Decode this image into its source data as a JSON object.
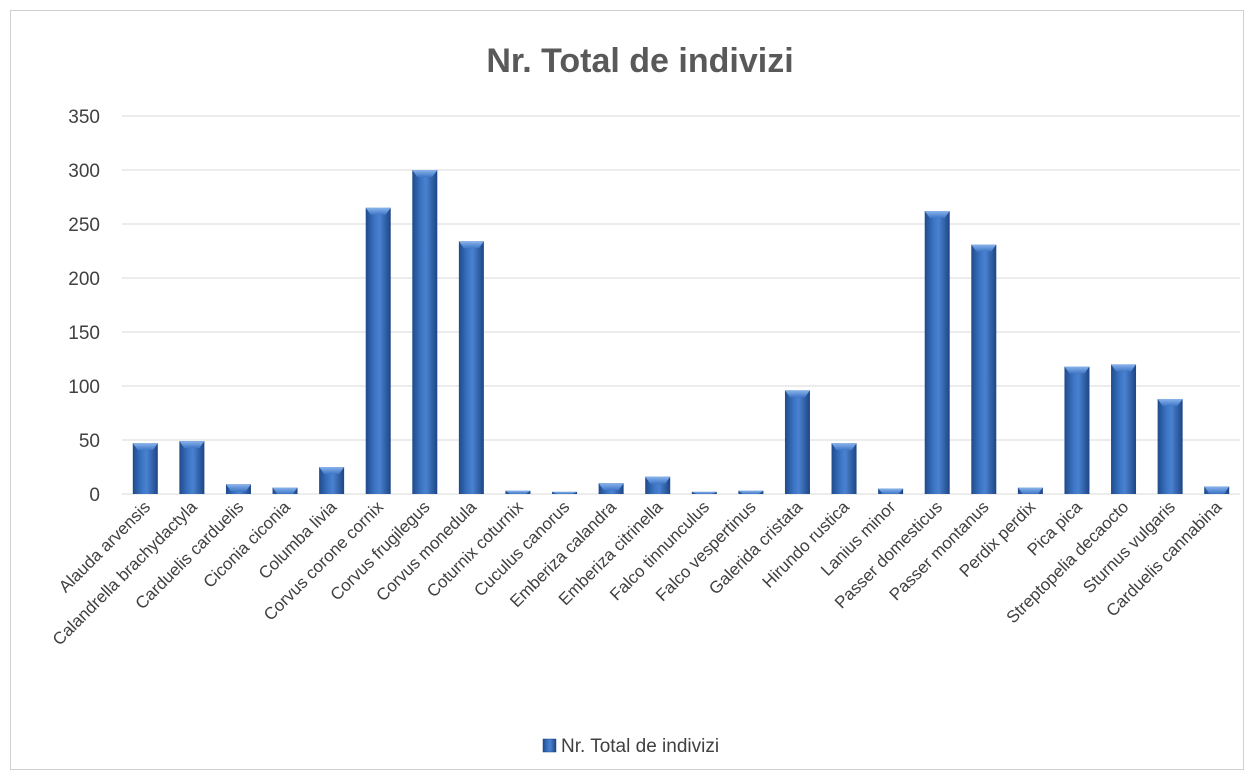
{
  "chart_data": {
    "type": "bar",
    "title": "Nr. Total de indivizi",
    "xlabel": "",
    "ylabel": "",
    "ylim": [
      0,
      350
    ],
    "yticks": [
      "0",
      "50",
      "100",
      "150",
      "200",
      "250",
      "300",
      "350"
    ],
    "grid": true,
    "legend_position": "bottom",
    "categories": [
      "Alauda arvensis",
      "Calandrella brachydactyla",
      "Carduelis carduelis",
      "Ciconia ciconia",
      "Columba livia",
      "Corvus corone cornix",
      "Corvus frugilegus",
      "Corvus monedula",
      "Coturnix coturnix",
      "Cuculus canorus",
      "Emberiza calandra",
      "Emberiza citrinella",
      "Falco  tinnunculus",
      "Falco vespertinus",
      "Galerida cristata",
      "Hirundo rustica",
      "Lanius minor",
      "Passer domesticus",
      "Passer montanus",
      "Perdix perdix",
      "Pica pica",
      "Streptopelia decaocto",
      "Sturnus vulgaris",
      "Carduelis cannabina"
    ],
    "series": [
      {
        "name": "Nr. Total de indivizi",
        "color": "#2e63ad",
        "values": [
          47,
          49,
          9,
          6,
          25,
          265,
          300,
          234,
          3,
          2,
          10,
          16,
          2,
          3,
          96,
          47,
          5,
          262,
          231,
          6,
          118,
          120,
          88,
          7
        ]
      }
    ]
  }
}
